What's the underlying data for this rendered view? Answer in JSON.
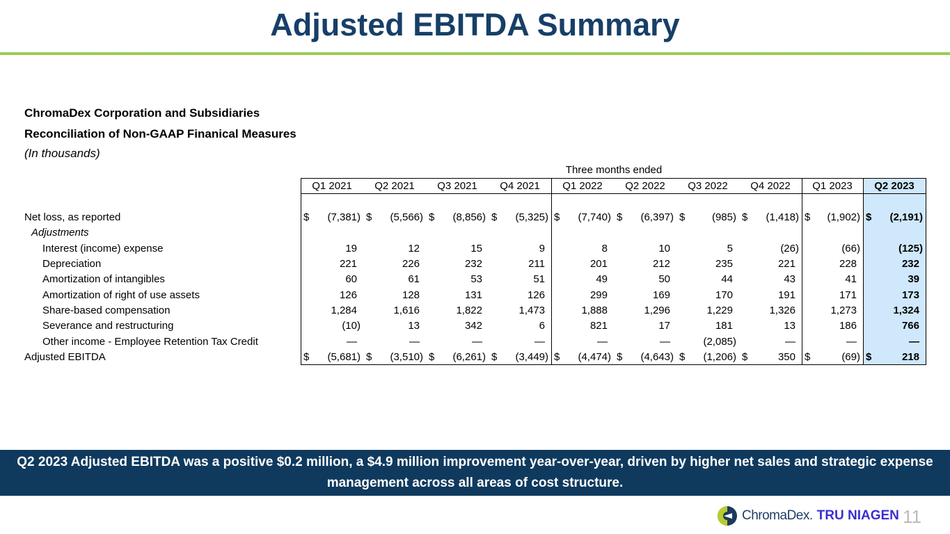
{
  "title": "Adjusted EBITDA Summary",
  "heading": {
    "company": "ChromaDex Corporation and Subsidiaries",
    "subtitle": "Reconciliation of Non-GAAP Finanical Measures",
    "units": "(In thousands)"
  },
  "table": {
    "group_header": "Three months ended",
    "columns": [
      "Q1 2021",
      "Q2 2021",
      "Q3 2021",
      "Q4 2021",
      "Q1 2022",
      "Q2 2022",
      "Q3 2022",
      "Q4 2022",
      "Q1 2023",
      "Q2 2023"
    ],
    "rows": [
      {
        "label": "Net loss, as reported",
        "indent": 0,
        "dollar": true,
        "values": [
          "(7,381)",
          "(5,566)",
          "(8,856)",
          "(5,325)",
          "(7,740)",
          "(6,397)",
          "(985)",
          "(1,418)",
          "(1,902)",
          "(2,191)"
        ]
      },
      {
        "label": "Adjustments",
        "indent": 1,
        "italic": true,
        "values": []
      },
      {
        "label": "Interest (income) expense",
        "indent": 2,
        "values": [
          "19",
          "12",
          "15",
          "9",
          "8",
          "10",
          "5",
          "(26)",
          "(66)",
          "(125)"
        ]
      },
      {
        "label": "Depreciation",
        "indent": 2,
        "values": [
          "221",
          "226",
          "232",
          "211",
          "201",
          "212",
          "235",
          "221",
          "228",
          "232"
        ]
      },
      {
        "label": "Amortization of intangibles",
        "indent": 2,
        "values": [
          "60",
          "61",
          "53",
          "51",
          "49",
          "50",
          "44",
          "43",
          "41",
          "39"
        ]
      },
      {
        "label": "Amortization of right of use assets",
        "indent": 2,
        "values": [
          "126",
          "128",
          "131",
          "126",
          "299",
          "169",
          "170",
          "191",
          "171",
          "173"
        ]
      },
      {
        "label": "Share-based compensation",
        "indent": 2,
        "values": [
          "1,284",
          "1,616",
          "1,822",
          "1,473",
          "1,888",
          "1,296",
          "1,229",
          "1,326",
          "1,273",
          "1,324"
        ]
      },
      {
        "label": "Severance and restructuring",
        "indent": 2,
        "values": [
          "(10)",
          "13",
          "342",
          "6",
          "821",
          "17",
          "181",
          "13",
          "186",
          "766"
        ]
      },
      {
        "label": "Other income - Employee Retention Tax Credit",
        "indent": 2,
        "values": [
          "—",
          "—",
          "—",
          "—",
          "—",
          "—",
          "(2,085)",
          "—",
          "—",
          "—"
        ]
      },
      {
        "label": "Adjusted EBITDA",
        "indent": 0,
        "dollar": true,
        "values": [
          "(5,681)",
          "(3,510)",
          "(6,261)",
          "(3,449)",
          "(4,474)",
          "(4,643)",
          "(1,206)",
          "350",
          "(69)",
          "218"
        ]
      }
    ],
    "currency_symbol": "$"
  },
  "banner": "Q2 2023 Adjusted EBITDA was a positive $0.2 million, a $4.9 million improvement year-over-year, driven by higher net sales and strategic expense management across all areas of cost structure.",
  "footer": {
    "logo_text": "ChromaDex.",
    "brand": "TRU NIAGEN",
    "page_number": "11"
  }
}
